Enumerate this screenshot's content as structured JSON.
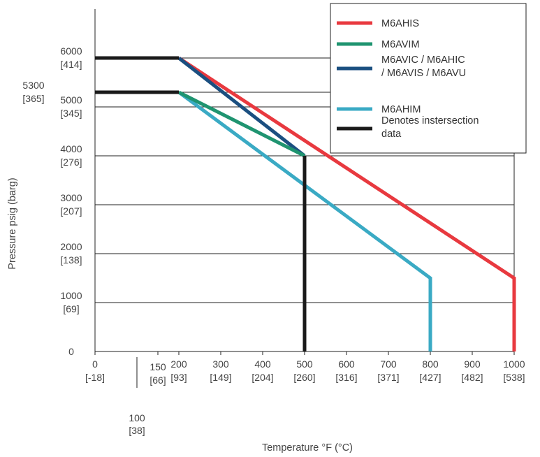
{
  "chart_data": {
    "type": "line",
    "xlabel": "Temperature °F (°C)",
    "ylabel": "Pressure psig (barg)",
    "xlim": [
      0,
      1000
    ],
    "ylim": [
      0,
      7000
    ],
    "grid": "horizontal",
    "legend_placement": "top-right",
    "x_ticks": [
      {
        "value": 0,
        "label": "0",
        "sub": "[-18]"
      },
      {
        "value": 100,
        "label": "100",
        "sub": "[38]"
      },
      {
        "value": 150,
        "label": "150",
        "sub": "[66]"
      },
      {
        "value": 200,
        "label": "200",
        "sub": "[93]"
      },
      {
        "value": 300,
        "label": "300",
        "sub": "[149]"
      },
      {
        "value": 400,
        "label": "400",
        "sub": "[204]"
      },
      {
        "value": 500,
        "label": "500",
        "sub": "[260]"
      },
      {
        "value": 600,
        "label": "600",
        "sub": "[316]"
      },
      {
        "value": 700,
        "label": "700",
        "sub": "[371]"
      },
      {
        "value": 800,
        "label": "800",
        "sub": "[427]"
      },
      {
        "value": 900,
        "label": "900",
        "sub": "[482]"
      },
      {
        "value": 1000,
        "label": "1000",
        "sub": "[538]"
      }
    ],
    "y_ticks": [
      {
        "value": 0,
        "label": "0",
        "sub": ""
      },
      {
        "value": 1000,
        "label": "1000",
        "sub": "[69]"
      },
      {
        "value": 2000,
        "label": "2000",
        "sub": "[138]"
      },
      {
        "value": 3000,
        "label": "3000",
        "sub": "[207]"
      },
      {
        "value": 4000,
        "label": "4000",
        "sub": "[276]"
      },
      {
        "value": 5000,
        "label": "5000",
        "sub": "[345]"
      },
      {
        "value": 5300,
        "label": "5300",
        "sub": "[365]"
      },
      {
        "value": 6000,
        "label": "6000",
        "sub": "[414]"
      }
    ],
    "series": [
      {
        "name": "M6AHIS",
        "color": "#e8393f",
        "points": [
          [
            200,
            6000
          ],
          [
            1000,
            1500
          ],
          [
            1000,
            0
          ]
        ]
      },
      {
        "name": "M6AVIM",
        "color": "#1f9470",
        "points": [
          [
            200,
            5300
          ],
          [
            500,
            4000
          ]
        ]
      },
      {
        "name": "M6AVIC / M6AHIC / M6AVIS / M6AVU",
        "color": "#1b4f80",
        "points": [
          [
            200,
            6000
          ],
          [
            500,
            4000
          ]
        ]
      },
      {
        "name": "M6AHIM",
        "color": "#3aaac4",
        "points": [
          [
            200,
            5300
          ],
          [
            800,
            1500
          ],
          [
            800,
            0
          ]
        ]
      },
      {
        "name": "Denotes instersection data",
        "color": "#1a1a1a",
        "points": [
          [
            0,
            6000
          ],
          [
            200,
            6000
          ]
        ]
      }
    ],
    "intersection_segments": [
      {
        "points": [
          [
            0,
            6000
          ],
          [
            200,
            6000
          ]
        ]
      },
      {
        "points": [
          [
            0,
            5300
          ],
          [
            200,
            5300
          ]
        ]
      },
      {
        "points": [
          [
            500,
            4000
          ],
          [
            500,
            0
          ]
        ]
      }
    ],
    "legend": [
      {
        "lines": [
          "M6AHIS"
        ],
        "color": "#e8393f"
      },
      {
        "lines": [
          "M6AVIM"
        ],
        "color": "#1f9470"
      },
      {
        "lines": [
          "M6AVIC / M6AHIC",
          "/ M6AVIS / M6AVU"
        ],
        "color": "#1b4f80"
      },
      {
        "lines": [
          "M6AHIM"
        ],
        "color": "#3aaac4"
      },
      {
        "lines": [
          "Denotes instersection",
          "data"
        ],
        "color": "#1a1a1a"
      }
    ]
  }
}
